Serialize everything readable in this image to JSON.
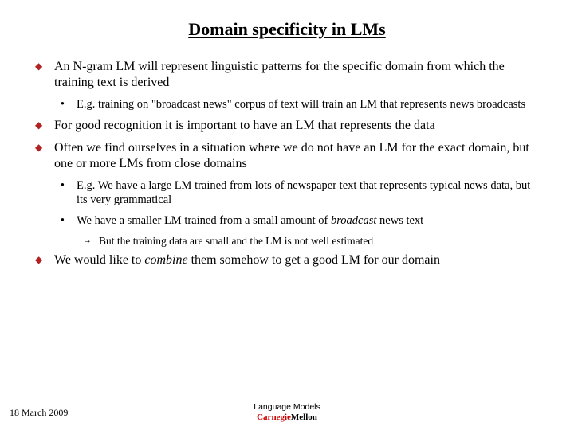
{
  "title": "Domain specificity in LMs",
  "bullets": {
    "b1": "An N-gram LM will represent linguistic patterns for the specific domain from which the training text is derived",
    "b1_1": "E.g. training on \"broadcast news\" corpus of text will train an LM that represents news broadcasts",
    "b2": "For good recognition it is important to have an LM that represents the data",
    "b3": "Often we find ourselves in a situation where we do not have an LM for the exact domain, but one or more LMs from close domains",
    "b3_1": "E.g. We have a large LM trained from lots of newspaper text that represents typical news data, but its very grammatical",
    "b3_2_pre": "We have a smaller LM trained from a small amount of ",
    "b3_2_em": "broadcast",
    "b3_2_post": " news text",
    "b3_2_1": "But the training data are small and the LM is not well estimated",
    "b4_pre": "We would like to ",
    "b4_em": "combine",
    "b4_post": " them somehow to get a good LM for our domain"
  },
  "footer": {
    "date": "18 March 2009",
    "label": "Language Models",
    "brand_part1": "Carnegie",
    "brand_part2": "Mellon"
  },
  "colors": {
    "diamond": "#b22222",
    "text": "#000000",
    "brand_red": "#cc0000",
    "background": "#ffffff"
  }
}
